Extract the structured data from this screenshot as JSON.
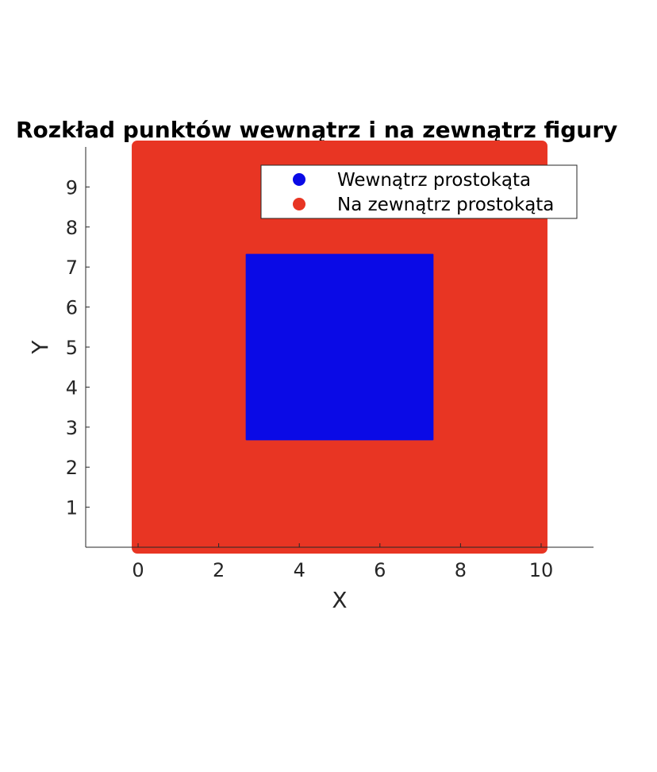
{
  "chart_data": {
    "type": "scatter",
    "title": "Rozkład punktów wewnątrz i na zewnątrz figury",
    "xlabel": "X",
    "ylabel": "Y",
    "xlim": [
      -1.3,
      11.3
    ],
    "ylim": [
      0,
      10
    ],
    "xticks": [
      0,
      2,
      4,
      6,
      8,
      10
    ],
    "yticks": [
      1,
      2,
      3,
      4,
      5,
      6,
      7,
      8,
      9
    ],
    "grid": false,
    "legend_position": "top-right",
    "series": [
      {
        "name": "Wewnątrz prostokąta",
        "color": "#0a0ae6",
        "region": {
          "x": [
            2.67,
            7.33
          ],
          "y": [
            2.67,
            7.33
          ]
        }
      },
      {
        "name": "Na zewnątrz prostokąta",
        "color": "#e83523",
        "region": {
          "x": [
            0,
            10
          ],
          "y": [
            0,
            10
          ]
        }
      }
    ]
  }
}
